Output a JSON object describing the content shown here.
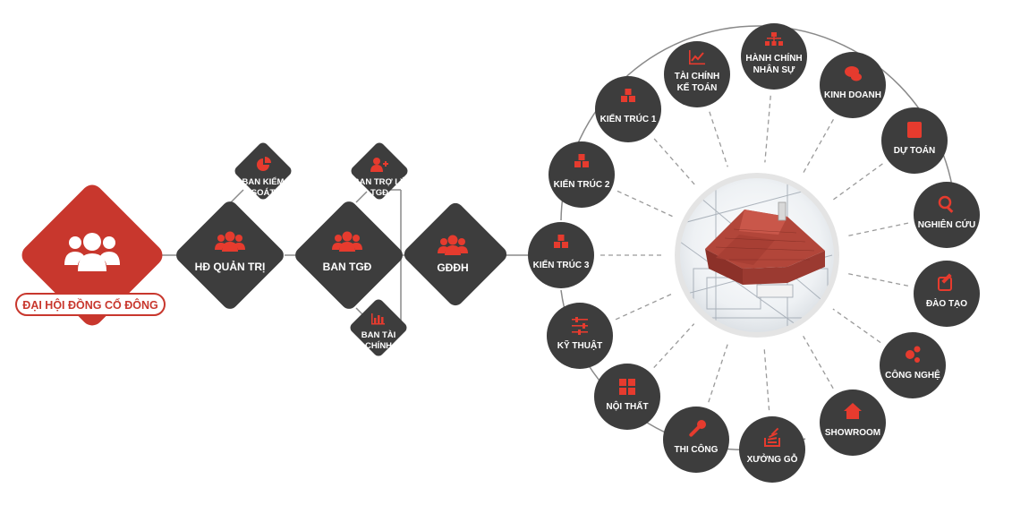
{
  "colors": {
    "accent_red": "#c8372d",
    "node_dark": "#3d3d3d",
    "line": "#8a8a8a",
    "icon_red": "#e63b2e"
  },
  "root": {
    "label": "ĐẠI HỘI ĐỒNG CỔ ĐÔNG",
    "icon": "users-icon"
  },
  "main": [
    {
      "label": "HĐ QUẢN TRỊ",
      "icon": "users-icon"
    },
    {
      "label": "BAN TGĐ",
      "icon": "users-icon"
    },
    {
      "label": "GĐĐH",
      "icon": "users-icon"
    }
  ],
  "satellites": {
    "kiem_soat": {
      "line1": "BAN KIỂM",
      "line2": "SOÁT",
      "icon": "pie-chart-icon"
    },
    "tro_ly": {
      "line1": "BAN TRỢ LÝ",
      "line2": "TGĐ",
      "icon": "user-plus-icon"
    },
    "tai_chinh": {
      "line1": "BAN TÀI",
      "line2": "CHÍNH",
      "icon": "bar-chart-icon"
    }
  },
  "departments": [
    {
      "line1": "KIẾN TRÚC 3",
      "line2": "",
      "icon": "cubes-icon"
    },
    {
      "line1": "KIẾN TRÚC 2",
      "line2": "",
      "icon": "cubes-icon"
    },
    {
      "line1": "KIẾN TRÚC 1",
      "line2": "",
      "icon": "cubes-icon"
    },
    {
      "line1": "TÀI CHÍNH",
      "line2": "KẾ TOÁN",
      "icon": "line-chart-icon"
    },
    {
      "line1": "HÀNH CHÍNH",
      "line2": "NHÂN SỰ",
      "icon": "sitemap-icon"
    },
    {
      "line1": "KINH DOANH",
      "line2": "",
      "icon": "chat-icon"
    },
    {
      "line1": "DỰ TOÁN",
      "line2": "",
      "icon": "calculator-icon"
    },
    {
      "line1": "NGHIÊN CỨU",
      "line2": "",
      "icon": "search-icon"
    },
    {
      "line1": "ĐÀO TẠO",
      "line2": "",
      "icon": "edit-icon"
    },
    {
      "line1": "CÔNG NGHỆ",
      "line2": "",
      "icon": "gears-icon"
    },
    {
      "line1": "SHOWROOM",
      "line2": "",
      "icon": "home-icon"
    },
    {
      "line1": "XƯỞNG GỖ",
      "line2": "",
      "icon": "stack-icon"
    },
    {
      "line1": "THI CÔNG",
      "line2": "",
      "icon": "wrench-icon"
    },
    {
      "line1": "NỘI THẤT",
      "line2": "",
      "icon": "grid-icon"
    },
    {
      "line1": "KỸ THUẬT",
      "line2": "",
      "icon": "sliders-icon"
    }
  ],
  "center_image": {
    "icon": "house-blueprint-illustration"
  }
}
